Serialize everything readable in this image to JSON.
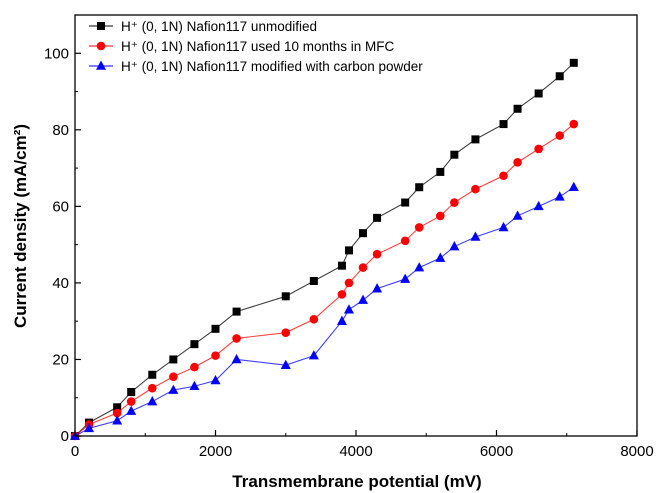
{
  "chart_data": {
    "type": "line",
    "xlabel": "Transmembrane potential (mV)",
    "ylabel": "Current density (mA/cm²)",
    "xlim": [
      0,
      8000
    ],
    "ylim": [
      0,
      110
    ],
    "xticks": [
      0,
      2000,
      4000,
      6000,
      8000
    ],
    "yticks": [
      0,
      20,
      40,
      60,
      80,
      100
    ],
    "grid": false,
    "legend_position": "top-left",
    "series": [
      {
        "name": "H⁺ (0, 1N) Nafion117 unmodified",
        "color": "#000000",
        "marker": "square",
        "x": [
          0,
          200,
          600,
          800,
          1100,
          1400,
          1700,
          2000,
          2300,
          3000,
          3400,
          3800,
          3900,
          4100,
          4300,
          4700,
          4900,
          5200,
          5400,
          5700,
          6100,
          6300,
          6600,
          6900,
          7100
        ],
        "y": [
          0,
          3.5,
          7.5,
          11.5,
          16,
          20,
          24,
          28,
          32.5,
          36.5,
          40.5,
          44.5,
          48.5,
          53,
          57,
          61,
          65,
          69,
          73.5,
          77.5,
          81.5,
          85.5,
          89.5,
          94,
          97.5
        ]
      },
      {
        "name": "H⁺ (0, 1N) Nafion117 used 10 months in MFC",
        "color": "#ff0000",
        "marker": "circle",
        "x": [
          0,
          200,
          600,
          800,
          1100,
          1400,
          1700,
          2000,
          2300,
          3000,
          3400,
          3800,
          3900,
          4100,
          4300,
          4700,
          4900,
          5200,
          5400,
          5700,
          6100,
          6300,
          6600,
          6900,
          7100
        ],
        "y": [
          0,
          3,
          6,
          9,
          12.5,
          15.5,
          18,
          21,
          25.5,
          27,
          30.5,
          37,
          40,
          44,
          47.5,
          51,
          54.5,
          57.5,
          61,
          64.5,
          68,
          71.5,
          75,
          78.5,
          81.5
        ]
      },
      {
        "name": "H⁺ (0, 1N) Nafion117 modified with carbon powder",
        "color": "#0000ff",
        "marker": "triangle",
        "x": [
          0,
          200,
          600,
          800,
          1100,
          1400,
          1700,
          2000,
          2300,
          3000,
          3400,
          3800,
          3900,
          4100,
          4300,
          4700,
          4900,
          5200,
          5400,
          5700,
          6100,
          6300,
          6600,
          6900,
          7100
        ],
        "y": [
          0,
          2,
          4,
          6.5,
          9,
          12,
          13,
          14.5,
          20,
          18.5,
          21,
          30,
          33,
          35.5,
          38.5,
          41,
          44,
          46.5,
          49.5,
          52,
          54.5,
          57.5,
          60,
          62.5,
          65
        ]
      }
    ]
  }
}
